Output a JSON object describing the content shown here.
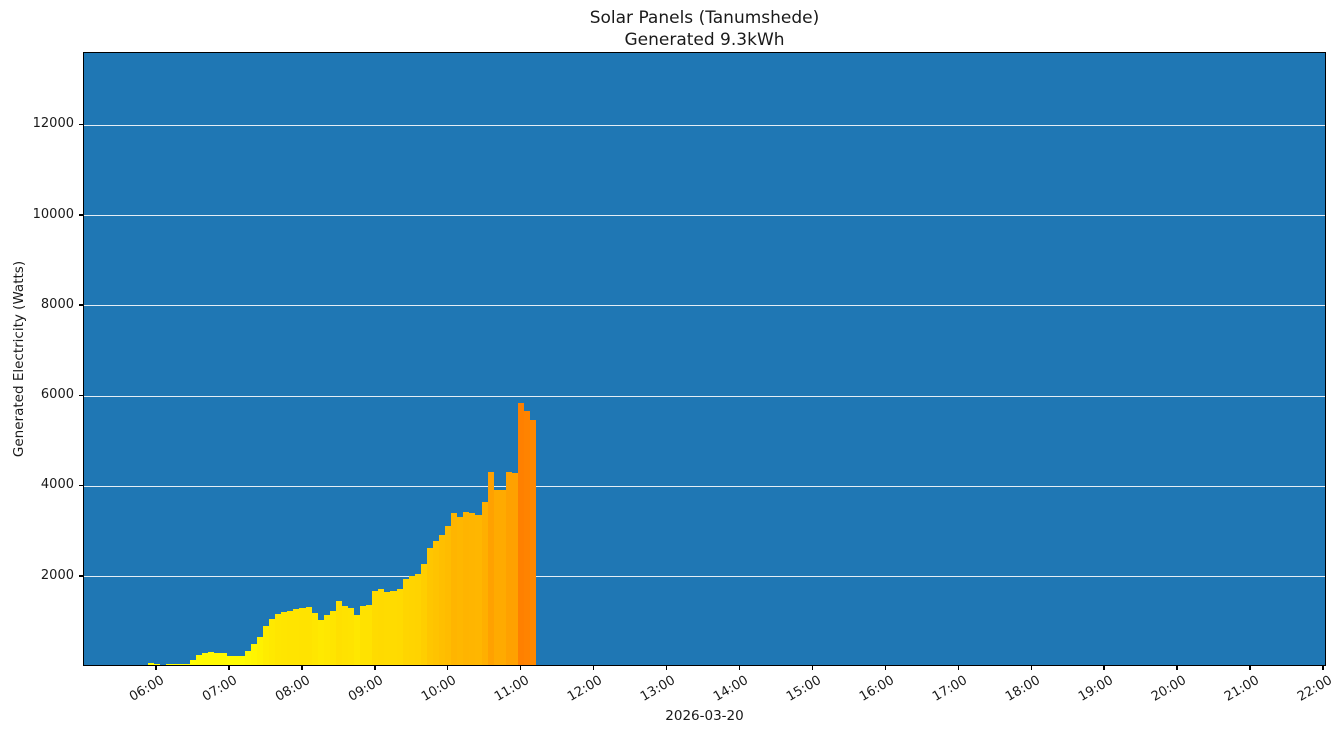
{
  "title": {
    "line1": "Solar Panels (Tanumshede)",
    "line2": "Generated 9.3kWh"
  },
  "chart_data": {
    "type": "bar",
    "title": "Solar Panels (Tanumshede)",
    "subtitle": "Generated 9.3kWh",
    "xlabel": "2026-03-20",
    "ylabel": "Generated Electricity (Watts)",
    "plot_background": "#1f77b4",
    "grid_color": "#ffffff",
    "x_axis": {
      "start_hour": 5.0,
      "end_hour": 22.04,
      "tick_labels": [
        "06:00",
        "07:00",
        "08:00",
        "09:00",
        "10:00",
        "11:00",
        "12:00",
        "13:00",
        "14:00",
        "15:00",
        "16:00",
        "17:00",
        "18:00",
        "19:00",
        "20:00",
        "21:00",
        "22:00"
      ]
    },
    "y_axis": {
      "min": 0,
      "max": 13600,
      "tick_values": [
        2000,
        4000,
        6000,
        8000,
        10000,
        12000
      ],
      "grid": true
    },
    "bar_interval_minutes": 5,
    "colormap": {
      "style": "value-mapped yellow to orange",
      "low_color": "#ffff00",
      "high_color": "#ff8000",
      "vmax_watts": 5820
    },
    "total_generated_kwh": 9.3,
    "series": [
      {
        "time": "05:55",
        "watts": 45
      },
      {
        "time": "06:00",
        "watts": 12
      },
      {
        "time": "06:05",
        "watts": 10
      },
      {
        "time": "06:10",
        "watts": 12
      },
      {
        "time": "06:15",
        "watts": 15
      },
      {
        "time": "06:20",
        "watts": 18
      },
      {
        "time": "06:25",
        "watts": 25
      },
      {
        "time": "06:30",
        "watts": 120
      },
      {
        "time": "06:35",
        "watts": 220
      },
      {
        "time": "06:40",
        "watts": 260
      },
      {
        "time": "06:45",
        "watts": 280
      },
      {
        "time": "06:50",
        "watts": 270
      },
      {
        "time": "06:55",
        "watts": 265
      },
      {
        "time": "07:00",
        "watts": 205
      },
      {
        "time": "07:05",
        "watts": 200
      },
      {
        "time": "07:10",
        "watts": 195
      },
      {
        "time": "07:15",
        "watts": 310
      },
      {
        "time": "07:20",
        "watts": 465
      },
      {
        "time": "07:25",
        "watts": 620
      },
      {
        "time": "07:30",
        "watts": 865
      },
      {
        "time": "07:35",
        "watts": 1020
      },
      {
        "time": "07:40",
        "watts": 1130
      },
      {
        "time": "07:45",
        "watts": 1175
      },
      {
        "time": "07:50",
        "watts": 1210
      },
      {
        "time": "07:55",
        "watts": 1240
      },
      {
        "time": "08:00",
        "watts": 1275
      },
      {
        "time": "08:05",
        "watts": 1290
      },
      {
        "time": "08:10",
        "watts": 1160
      },
      {
        "time": "08:15",
        "watts": 1010
      },
      {
        "time": "08:20",
        "watts": 1110
      },
      {
        "time": "08:25",
        "watts": 1190
      },
      {
        "time": "08:30",
        "watts": 1430
      },
      {
        "time": "08:35",
        "watts": 1310
      },
      {
        "time": "08:40",
        "watts": 1270
      },
      {
        "time": "08:45",
        "watts": 1110
      },
      {
        "time": "08:50",
        "watts": 1320
      },
      {
        "time": "08:55",
        "watts": 1340
      },
      {
        "time": "09:00",
        "watts": 1650
      },
      {
        "time": "09:05",
        "watts": 1690
      },
      {
        "time": "09:10",
        "watts": 1630
      },
      {
        "time": "09:15",
        "watts": 1650
      },
      {
        "time": "09:20",
        "watts": 1690
      },
      {
        "time": "09:25",
        "watts": 1910
      },
      {
        "time": "09:30",
        "watts": 1980
      },
      {
        "time": "09:35",
        "watts": 2030
      },
      {
        "time": "09:40",
        "watts": 2250
      },
      {
        "time": "09:45",
        "watts": 2590
      },
      {
        "time": "09:50",
        "watts": 2750
      },
      {
        "time": "09:55",
        "watts": 2900
      },
      {
        "time": "10:00",
        "watts": 3080
      },
      {
        "time": "10:05",
        "watts": 3380
      },
      {
        "time": "10:10",
        "watts": 3300
      },
      {
        "time": "10:15",
        "watts": 3410
      },
      {
        "time": "10:20",
        "watts": 3370
      },
      {
        "time": "10:25",
        "watts": 3340
      },
      {
        "time": "10:30",
        "watts": 3630
      },
      {
        "time": "10:35",
        "watts": 4300
      },
      {
        "time": "10:40",
        "watts": 3900
      },
      {
        "time": "10:45",
        "watts": 3880
      },
      {
        "time": "10:50",
        "watts": 4290
      },
      {
        "time": "10:55",
        "watts": 4275
      },
      {
        "time": "11:00",
        "watts": 5820
      },
      {
        "time": "11:05",
        "watts": 5650
      },
      {
        "time": "11:10",
        "watts": 5450
      }
    ]
  }
}
